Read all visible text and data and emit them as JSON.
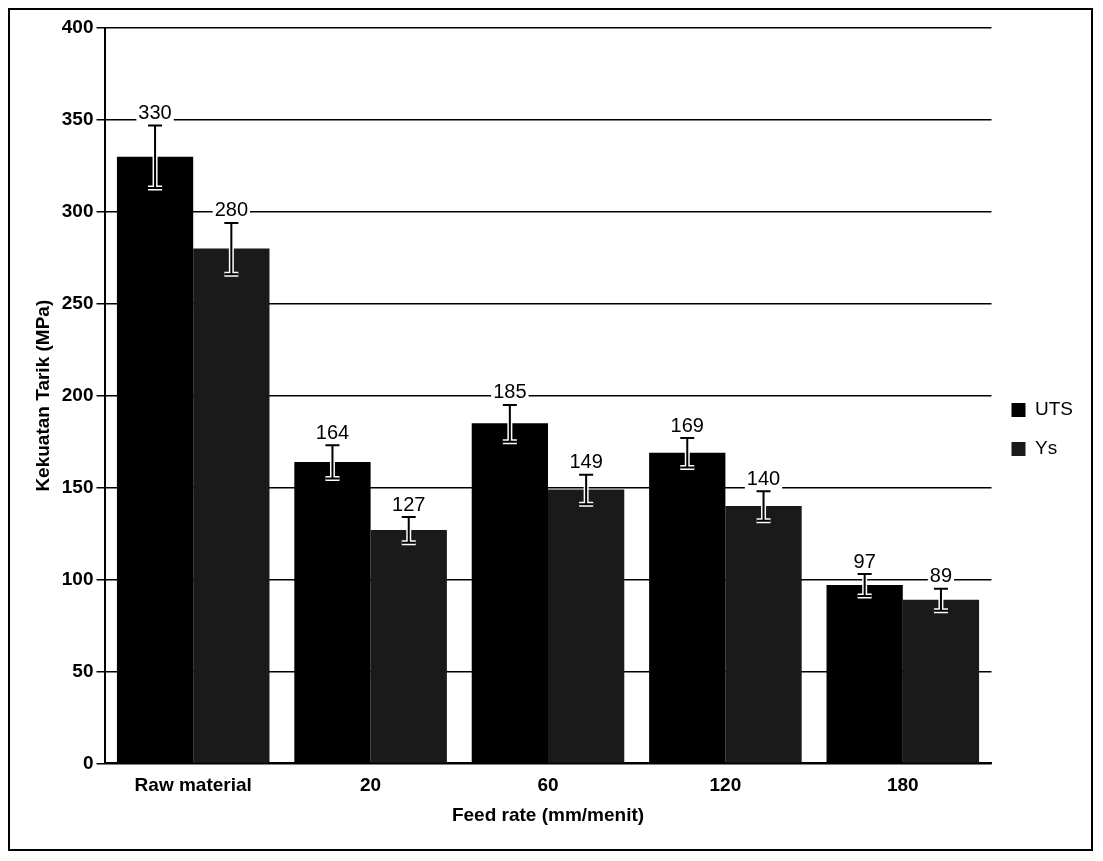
{
  "chart_data": {
    "type": "bar",
    "xlabel": "Feed rate (mm/menit)",
    "ylabel": "Kekuatan Tarik (MPa)",
    "categories": [
      "Raw material",
      "20",
      "60",
      "120",
      "180"
    ],
    "series": [
      {
        "name": "UTS",
        "color": "#000000",
        "values": [
          330,
          164,
          185,
          169,
          97
        ],
        "errors": [
          17,
          9,
          10,
          8,
          6
        ]
      },
      {
        "name": "Ys",
        "color": "#1a1a1a",
        "values": [
          280,
          127,
          149,
          140,
          89
        ],
        "errors": [
          14,
          7,
          8,
          8,
          6
        ]
      }
    ],
    "ylim": [
      0,
      400
    ],
    "yticks": [
      0,
      50,
      100,
      150,
      200,
      250,
      300,
      350,
      400
    ],
    "grid": "y",
    "legend": "right",
    "data_labels": true
  }
}
